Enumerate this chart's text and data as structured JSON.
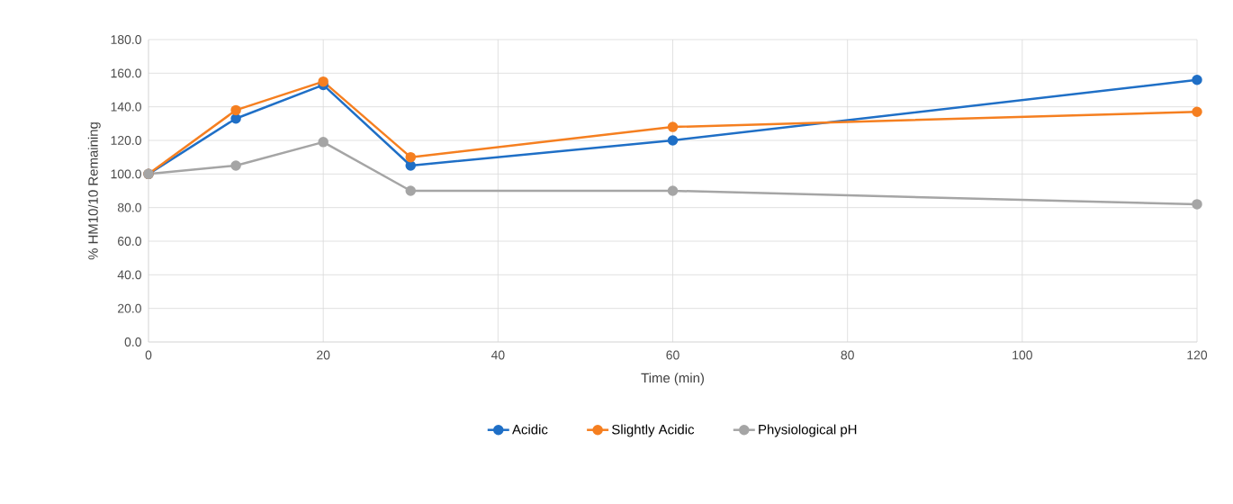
{
  "chart_data": {
    "type": "line",
    "xlabel": "Time (min)",
    "ylabel": "% HM10/10 Remaining",
    "xlim": [
      0,
      120
    ],
    "xticks": [
      0,
      20,
      40,
      60,
      80,
      100,
      120
    ],
    "ylim": [
      0,
      180
    ],
    "yticks": [
      {
        "value": 0,
        "label": "0.0"
      },
      {
        "value": 20,
        "label": "20.0"
      },
      {
        "value": 40,
        "label": "40.0"
      },
      {
        "value": 60,
        "label": "60.0"
      },
      {
        "value": 80,
        "label": "80.0"
      },
      {
        "value": 100,
        "label": "100.0"
      },
      {
        "value": 120,
        "label": "120.0"
      },
      {
        "value": 140,
        "label": "140.0"
      },
      {
        "value": 160,
        "label": "160.0"
      },
      {
        "value": 180,
        "label": "180.0"
      }
    ],
    "x": [
      0,
      10,
      20,
      30,
      60,
      120
    ],
    "series": [
      {
        "name": "Acidic",
        "color": "#1f6fc6",
        "values": [
          100,
          133,
          153,
          105,
          120,
          156
        ]
      },
      {
        "name": "Slightly Acidic",
        "color": "#f57f20",
        "values": [
          100,
          138,
          155,
          110,
          128,
          137
        ]
      },
      {
        "name": "Physiological pH",
        "color": "#a5a5a5",
        "values": [
          100,
          105,
          119,
          90,
          90,
          82
        ]
      }
    ],
    "grid": true,
    "legend": "bottom",
    "marker": "circle",
    "line_style": "solid"
  }
}
